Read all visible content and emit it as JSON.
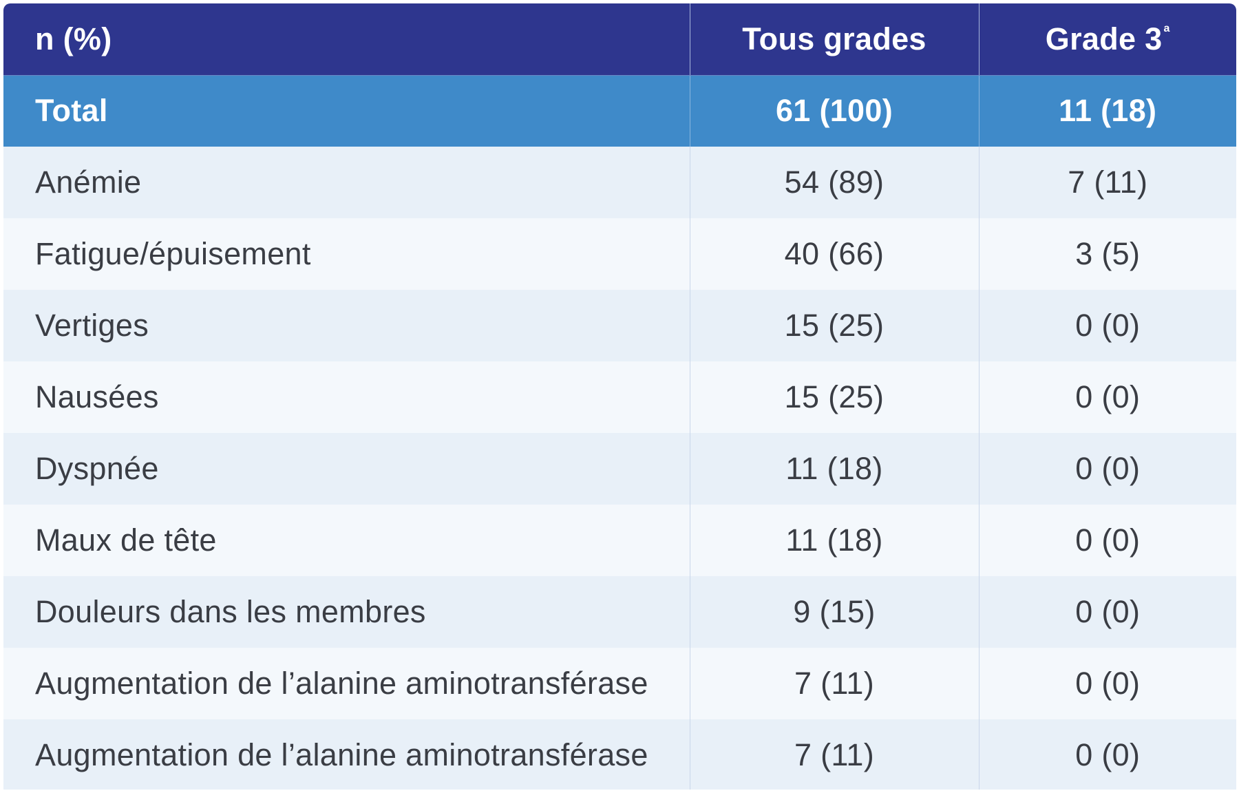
{
  "header": {
    "col1": "n (%)",
    "col2": "Tous grades",
    "col3": "Grade 3",
    "col3_footnote": "a"
  },
  "total": {
    "label": "Total",
    "all_grades": "61 (100)",
    "grade3": "11 (18)"
  },
  "rows": [
    {
      "label": "Anémie",
      "all_grades": "54 (89)",
      "grade3": "7 (11)"
    },
    {
      "label": "Fatigue/épuisement",
      "all_grades": "40 (66)",
      "grade3": "3 (5)"
    },
    {
      "label": "Vertiges",
      "all_grades": "15 (25)",
      "grade3": "0 (0)"
    },
    {
      "label": "Nausées",
      "all_grades": "15 (25)",
      "grade3": "0 (0)"
    },
    {
      "label": "Dyspnée",
      "all_grades": "11 (18)",
      "grade3": "0 (0)"
    },
    {
      "label": "Maux de tête",
      "all_grades": "11 (18)",
      "grade3": "0 (0)"
    },
    {
      "label": "Douleurs dans les membres",
      "all_grades": "9 (15)",
      "grade3": "0 (0)"
    },
    {
      "label": "Augmentation de l’alanine aminotransférase",
      "all_grades": "7 (11)",
      "grade3": "0 (0)"
    },
    {
      "label": "Augmentation de l’alanine aminotransférase",
      "all_grades": "7 (11)",
      "grade3": "0 (0)"
    }
  ],
  "colors": {
    "header_bg": "#2e368e",
    "total_bg": "#3f8ac9",
    "row_odd_bg": "#e8f0f8",
    "row_even_bg": "#f4f8fc",
    "text": "#3a3d44"
  }
}
